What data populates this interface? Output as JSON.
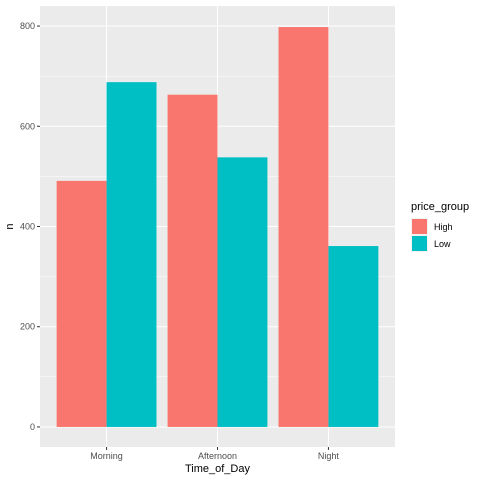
{
  "chart_data": {
    "type": "bar",
    "categories": [
      "Morning",
      "Afternoon",
      "Night"
    ],
    "series": [
      {
        "name": "High",
        "values": [
          491,
          663,
          798
        ],
        "color": "#F8766D"
      },
      {
        "name": "Low",
        "values": [
          688,
          538,
          361
        ],
        "color": "#00BFC4"
      }
    ],
    "xlabel": "Time_of_Day",
    "ylabel": "n",
    "ylim": [
      -40,
      840
    ],
    "yticks": [
      0,
      200,
      400,
      600,
      800
    ],
    "legend_title": "price_group",
    "legend_position": "right",
    "grid": true,
    "panel_background": "#EBEBEB"
  }
}
